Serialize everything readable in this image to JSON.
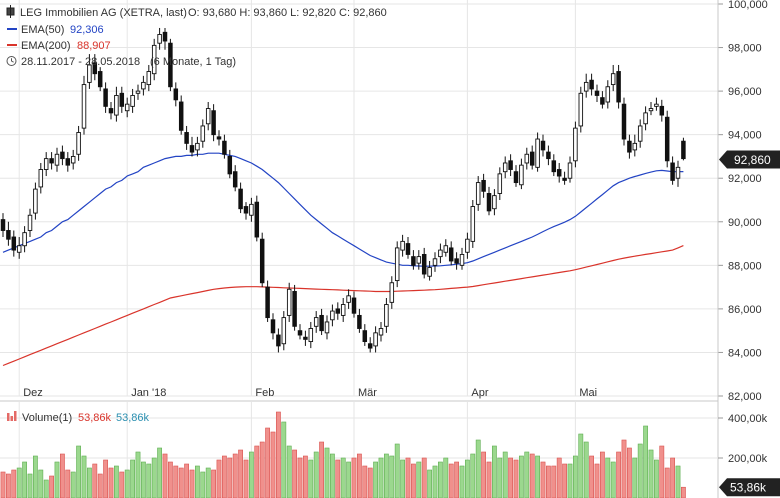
{
  "chart_data": [
    {
      "type": "candlestick",
      "legend": {
        "instrument": "LEG Immobilien AG (XETRA, last)",
        "ohlc_text": "O: 93,680  H: 93,860  L: 92,820  C: 92,860",
        "ema50_label": "EMA(50)",
        "ema50_value": "92,306",
        "ema200_label": "EMA(200)",
        "ema200_value": "88,907",
        "range_text": "28.11.2017 - 28.05.2018",
        "period_text": "(6 Monate, 1 Tag)"
      },
      "last_price_label": "92,860",
      "y_ticks": [
        "100,000",
        "98,000",
        "96,000",
        "94,000",
        "92,000",
        "90,000",
        "88,000",
        "86,000",
        "84,000",
        "82,000"
      ],
      "y_tick_values": [
        100,
        98,
        96,
        94,
        92,
        90,
        88,
        86,
        84,
        82
      ],
      "ylim": [
        82,
        100
      ],
      "x_ticks": [
        "Dez",
        "Jan '18",
        "Feb",
        "Mär",
        "Apr",
        "Mai"
      ],
      "x_tick_index": [
        3,
        23,
        46,
        65,
        86,
        106
      ],
      "n": 127,
      "close": [
        89.6,
        89.2,
        88.7,
        88.9,
        89.5,
        90.3,
        91.5,
        92.4,
        92.9,
        92.7,
        93.1,
        92.9,
        92.6,
        93.0,
        94.1,
        96.3,
        97.2,
        96.8,
        96.2,
        95.3,
        95.0,
        95.8,
        95.3,
        95.4,
        95.8,
        96.0,
        96.4,
        96.9,
        98.1,
        98.6,
        98.3,
        96.2,
        95.6,
        94.2,
        93.6,
        93.2,
        93.6,
        94.4,
        95.2,
        94.0,
        93.8,
        93.1,
        92.2,
        91.6,
        90.6,
        90.4,
        90.8,
        89.3,
        87.2,
        85.6,
        84.9,
        84.3,
        85.6,
        86.9,
        85.2,
        84.8,
        84.6,
        85.1,
        85.6,
        85.0,
        85.4,
        85.9,
        85.8,
        86.2,
        86.6,
        85.8,
        85.1,
        84.5,
        84.2,
        84.9,
        85.1,
        86.2,
        87.2,
        88.8,
        89.1,
        88.5,
        88.0,
        88.4,
        87.6,
        87.9,
        88.3,
        88.7,
        88.9,
        88.2,
        88.1,
        88.5,
        89.2,
        90.7,
        91.8,
        91.4,
        90.5,
        91.2,
        92.2,
        92.7,
        92.4,
        91.8,
        92.6,
        93.1,
        92.6,
        93.8,
        93.3,
        92.9,
        92.3,
        92.1,
        91.9,
        92.7,
        94.3,
        95.9,
        96.4,
        96.1,
        95.8,
        95.4,
        96.2,
        96.8,
        95.5,
        93.8,
        93.2,
        93.6,
        94.4,
        95.0,
        95.2,
        95.4,
        94.9,
        92.8,
        91.9,
        92.5,
        92.9
      ],
      "open": [
        90.1,
        89.6,
        89.3,
        88.6,
        88.9,
        89.6,
        90.4,
        91.6,
        92.4,
        92.9,
        92.6,
        93.2,
        92.9,
        92.7,
        93.1,
        94.3,
        96.4,
        97.3,
        96.9,
        96.1,
        95.2,
        94.9,
        95.9,
        95.1,
        95.3,
        95.9,
        96.1,
        96.3,
        96.8,
        98.2,
        98.7,
        98.2,
        96.1,
        95.5,
        94.1,
        93.5,
        93.3,
        93.7,
        94.5,
        95.1,
        93.9,
        93.7,
        93.0,
        92.3,
        91.5,
        90.7,
        90.3,
        90.9,
        89.2,
        87.0,
        85.5,
        84.8,
        84.4,
        85.7,
        86.8,
        85.0,
        84.7,
        84.5,
        85.2,
        85.7,
        84.9,
        85.5,
        86.0,
        85.7,
        86.3,
        86.5,
        85.7,
        85.0,
        84.4,
        84.3,
        84.8,
        85.2,
        86.3,
        87.3,
        88.7,
        89.0,
        88.4,
        88.1,
        88.5,
        87.5,
        88.0,
        88.4,
        88.6,
        88.8,
        88.3,
        88.0,
        88.6,
        89.1,
        90.8,
        91.9,
        91.3,
        90.6,
        91.3,
        92.3,
        92.8,
        92.3,
        91.7,
        92.7,
        93.2,
        92.5,
        93.7,
        93.2,
        92.8,
        92.4,
        92.0,
        92.0,
        92.8,
        94.4,
        96.0,
        96.5,
        96.0,
        95.7,
        95.5,
        96.3,
        96.9,
        95.4,
        93.7,
        93.3,
        93.7,
        94.5,
        95.1,
        95.3,
        95.3,
        94.8,
        92.7,
        92.0,
        93.7
      ],
      "high": [
        90.4,
        90.0,
        89.6,
        89.3,
        89.8,
        90.6,
        91.8,
        92.7,
        93.2,
        93.2,
        93.4,
        93.5,
        93.2,
        93.3,
        94.4,
        96.7,
        97.7,
        97.7,
        97.1,
        96.4,
        95.5,
        96.2,
        96.2,
        95.7,
        96.1,
        96.3,
        96.7,
        97.2,
        98.4,
        98.9,
        98.9,
        98.4,
        96.4,
        95.8,
        94.4,
        93.9,
        93.9,
        94.7,
        95.5,
        95.4,
        94.2,
        94.0,
        93.3,
        92.6,
        91.8,
        90.9,
        91.1,
        91.2,
        89.5,
        87.3,
        85.8,
        85.1,
        85.9,
        87.2,
        87.1,
        85.3,
        85.0,
        85.4,
        85.9,
        86.0,
        85.7,
        86.2,
        86.3,
        86.5,
        86.9,
        86.8,
        86.0,
        85.3,
        84.7,
        85.2,
        85.4,
        86.5,
        87.5,
        89.1,
        89.4,
        89.3,
        88.7,
        88.7,
        88.8,
        88.2,
        88.6,
        89.0,
        89.2,
        89.1,
        88.6,
        88.8,
        89.5,
        91.0,
        92.1,
        92.2,
        91.6,
        91.5,
        92.5,
        93.0,
        93.1,
        92.6,
        92.9,
        93.4,
        93.5,
        94.1,
        94.0,
        93.5,
        93.1,
        92.7,
        92.3,
        93.0,
        94.6,
        96.2,
        96.8,
        96.8,
        96.3,
        96.0,
        96.5,
        97.2,
        97.2,
        95.7,
        94.0,
        94.0,
        94.7,
        95.3,
        95.5,
        95.7,
        95.6,
        95.1,
        93.0,
        92.8,
        93.86
      ],
      "low": [
        89.3,
        88.9,
        88.4,
        88.3,
        88.6,
        89.3,
        90.1,
        91.3,
        92.1,
        92.4,
        92.3,
        92.6,
        92.3,
        92.4,
        92.8,
        94.0,
        96.1,
        96.5,
        96.0,
        95.0,
        94.7,
        94.6,
        95.0,
        94.8,
        95.0,
        95.6,
        95.8,
        96.0,
        96.5,
        97.9,
        97.9,
        96.0,
        95.3,
        94.0,
        93.3,
        93.0,
        93.0,
        93.4,
        94.2,
        93.7,
        93.5,
        92.9,
        92.0,
        91.4,
        90.4,
        90.1,
        90.0,
        89.1,
        87.0,
        85.4,
        84.6,
        84.0,
        84.1,
        85.4,
        85.0,
        84.6,
        84.3,
        84.2,
        84.9,
        84.8,
        84.6,
        85.2,
        85.5,
        85.4,
        86.0,
        85.6,
        84.9,
        84.3,
        84.0,
        84.0,
        84.5,
        84.9,
        86.0,
        87.0,
        88.4,
        88.3,
        87.8,
        87.8,
        87.4,
        87.3,
        87.7,
        88.1,
        88.4,
        88.0,
        87.8,
        87.8,
        88.3,
        88.8,
        90.5,
        91.1,
        90.3,
        90.3,
        91.0,
        92.0,
        92.1,
        91.6,
        91.5,
        92.4,
        92.4,
        92.3,
        93.0,
        92.6,
        92.1,
        91.8,
        91.7,
        91.8,
        92.5,
        94.1,
        95.7,
        95.8,
        95.5,
        95.2,
        95.2,
        96.0,
        95.2,
        93.5,
        92.9,
        93.0,
        93.4,
        94.2,
        94.9,
        95.1,
        94.6,
        92.5,
        91.7,
        91.6,
        92.82
      ],
      "ema50": [
        88.6,
        88.7,
        88.8,
        88.9,
        89.0,
        89.1,
        89.2,
        89.3,
        89.5,
        89.6,
        89.8,
        90.0,
        90.1,
        90.3,
        90.5,
        90.7,
        90.9,
        91.1,
        91.3,
        91.5,
        91.6,
        91.8,
        91.9,
        92.1,
        92.2,
        92.3,
        92.5,
        92.6,
        92.7,
        92.8,
        92.9,
        92.95,
        93.0,
        93.0,
        93.05,
        93.05,
        93.1,
        93.1,
        93.15,
        93.15,
        93.15,
        93.1,
        93.05,
        93.0,
        92.9,
        92.8,
        92.7,
        92.55,
        92.4,
        92.2,
        92.0,
        91.8,
        91.55,
        91.3,
        91.05,
        90.8,
        90.55,
        90.3,
        90.1,
        89.9,
        89.7,
        89.5,
        89.35,
        89.2,
        89.05,
        88.9,
        88.75,
        88.6,
        88.45,
        88.35,
        88.25,
        88.15,
        88.1,
        88.05,
        88.0,
        88.0,
        87.98,
        87.97,
        87.96,
        87.96,
        87.97,
        87.98,
        88.0,
        88.02,
        88.05,
        88.08,
        88.12,
        88.2,
        88.3,
        88.4,
        88.5,
        88.6,
        88.7,
        88.8,
        88.9,
        89.0,
        89.1,
        89.2,
        89.3,
        89.42,
        89.55,
        89.67,
        89.78,
        89.88,
        89.98,
        90.1,
        90.25,
        90.45,
        90.65,
        90.85,
        91.05,
        91.25,
        91.45,
        91.65,
        91.8,
        91.9,
        92.0,
        92.08,
        92.15,
        92.22,
        92.28,
        92.34,
        92.36,
        92.33,
        92.3,
        92.3,
        92.306
      ],
      "ema200": [
        83.4,
        83.5,
        83.6,
        83.7,
        83.8,
        83.9,
        84.0,
        84.1,
        84.2,
        84.3,
        84.4,
        84.5,
        84.6,
        84.7,
        84.8,
        84.9,
        85.0,
        85.1,
        85.2,
        85.3,
        85.4,
        85.5,
        85.6,
        85.7,
        85.8,
        85.9,
        86.0,
        86.1,
        86.2,
        86.3,
        86.4,
        86.5,
        86.55,
        86.6,
        86.65,
        86.7,
        86.75,
        86.8,
        86.85,
        86.9,
        86.93,
        86.96,
        86.98,
        87.0,
        87.01,
        87.02,
        87.02,
        87.02,
        87.01,
        87.0,
        86.99,
        86.98,
        86.97,
        86.96,
        86.95,
        86.94,
        86.93,
        86.92,
        86.91,
        86.9,
        86.89,
        86.88,
        86.87,
        86.86,
        86.85,
        86.84,
        86.83,
        86.82,
        86.81,
        86.8,
        86.8,
        86.8,
        86.8,
        86.81,
        86.82,
        86.83,
        86.84,
        86.85,
        86.86,
        86.87,
        86.88,
        86.9,
        86.92,
        86.94,
        86.96,
        86.98,
        87.0,
        87.03,
        87.07,
        87.11,
        87.15,
        87.19,
        87.23,
        87.27,
        87.31,
        87.35,
        87.39,
        87.43,
        87.47,
        87.51,
        87.55,
        87.59,
        87.63,
        87.67,
        87.71,
        87.75,
        87.8,
        87.86,
        87.92,
        87.98,
        88.04,
        88.1,
        88.16,
        88.22,
        88.28,
        88.33,
        88.38,
        88.42,
        88.46,
        88.5,
        88.54,
        88.58,
        88.62,
        88.66,
        88.7,
        88.8,
        88.907
      ]
    },
    {
      "type": "bar",
      "legend": {
        "label": "Volume(1)",
        "value_main": "53,86k",
        "value_alt": "53,86k"
      },
      "last_volume_label": "53,86k",
      "y_ticks": [
        "400,00k",
        "200,00k"
      ],
      "y_tick_values": [
        400,
        200
      ],
      "ylim": [
        0,
        480
      ],
      "volume": [
        130,
        120,
        140,
        150,
        180,
        120,
        210,
        140,
        90,
        110,
        180,
        220,
        140,
        130,
        260,
        210,
        150,
        170,
        120,
        190,
        150,
        160,
        130,
        140,
        190,
        230,
        180,
        170,
        200,
        250,
        220,
        180,
        160,
        150,
        170,
        140,
        160,
        130,
        150,
        140,
        190,
        210,
        200,
        220,
        240,
        190,
        230,
        260,
        280,
        350,
        330,
        430,
        380,
        260,
        240,
        200,
        210,
        190,
        230,
        280,
        250,
        220,
        190,
        200,
        180,
        200,
        220,
        160,
        150,
        180,
        200,
        220,
        210,
        270,
        190,
        200,
        170,
        180,
        200,
        140,
        160,
        180,
        200,
        170,
        180,
        160,
        190,
        220,
        290,
        230,
        180,
        260,
        200,
        230,
        200,
        190,
        210,
        230,
        220,
        210,
        180,
        160,
        160,
        200,
        170,
        170,
        210,
        320,
        280,
        210,
        170,
        230,
        200,
        180,
        230,
        290,
        250,
        200,
        270,
        360,
        240,
        190,
        260,
        150,
        200,
        160,
        53.86
      ]
    }
  ]
}
